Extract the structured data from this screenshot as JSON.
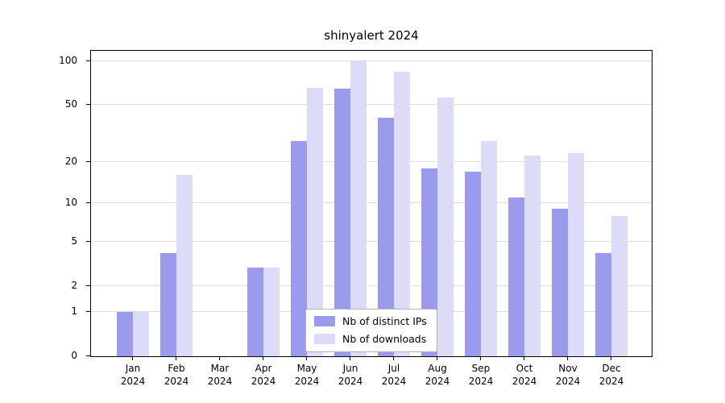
{
  "chart": {
    "title": "shinyalert 2024",
    "y_axis_ticks": [
      0,
      1,
      2,
      5,
      10,
      20,
      50,
      100
    ],
    "x_year": "2024",
    "months": [
      "Jan",
      "Feb",
      "Mar",
      "Apr",
      "May",
      "Jun",
      "Jul",
      "Aug",
      "Sep",
      "Oct",
      "Nov",
      "Dec"
    ]
  },
  "chart_data": {
    "type": "bar",
    "title": "shinyalert 2024",
    "categories": [
      "Jan 2024",
      "Feb 2024",
      "Mar 2024",
      "Apr 2024",
      "May 2024",
      "Jun 2024",
      "Jul 2024",
      "Aug 2024",
      "Sep 2024",
      "Oct 2024",
      "Nov 2024",
      "Dec 2024"
    ],
    "series": [
      {
        "name": "Nb of distinct IPs",
        "color": "#9b9bee",
        "values": [
          1,
          4,
          0,
          3,
          28,
          65,
          41,
          18,
          17,
          11,
          9,
          4
        ]
      },
      {
        "name": "Nb of downloads",
        "color": "#dcdcf9",
        "values": [
          1,
          16,
          0,
          3,
          66,
          100,
          85,
          56,
          28,
          22,
          23,
          8
        ]
      }
    ],
    "xlabel": "",
    "ylabel": "",
    "yscale": "log1p",
    "y_ticks": [
      0,
      1,
      2,
      5,
      10,
      20,
      50,
      100
    ],
    "ylim": [
      0,
      110
    ],
    "grid": true,
    "legend_position": "lower center inside"
  }
}
